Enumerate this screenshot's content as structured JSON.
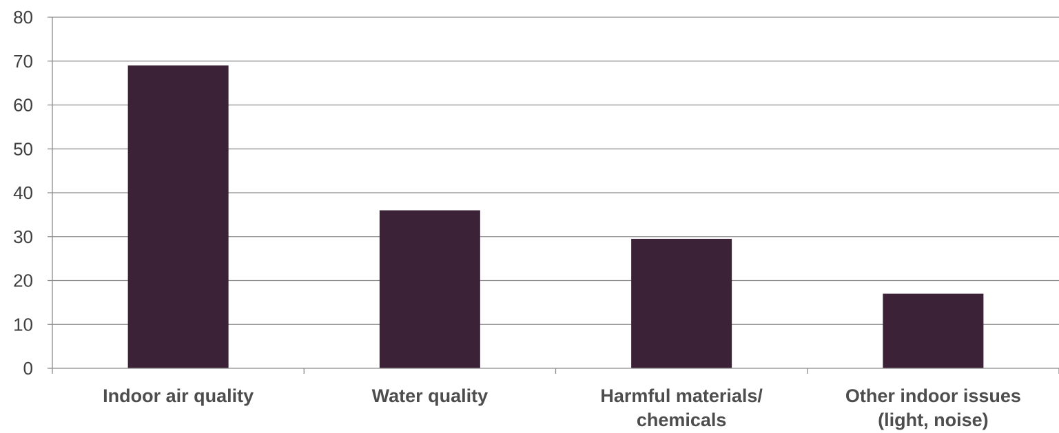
{
  "chart_data": {
    "type": "bar",
    "title": "",
    "xlabel": "",
    "ylabel": "",
    "categories": [
      [
        "Indoor air quality"
      ],
      [
        "Water quality"
      ],
      [
        "Harmful materials/",
        "chemicals"
      ],
      [
        "Other indoor issues",
        "(light, noise)"
      ]
    ],
    "values": [
      69,
      36,
      29.5,
      17
    ],
    "ylim": [
      0,
      80
    ],
    "yticks": [
      0,
      10,
      20,
      30,
      40,
      50,
      60,
      70,
      80
    ],
    "grid": true,
    "legend": "none",
    "colors": {
      "bar": "#3b2236"
    }
  }
}
